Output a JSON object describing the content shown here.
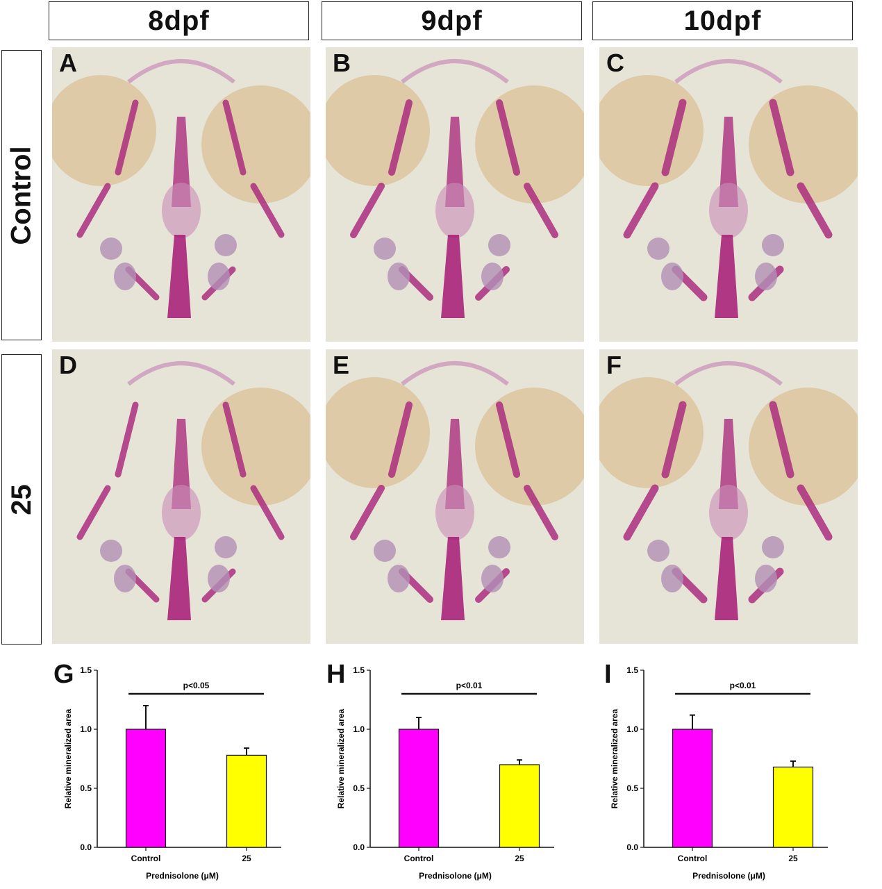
{
  "columns": [
    "8dpf",
    "9dpf",
    "10dpf"
  ],
  "rows": [
    "Control",
    "25"
  ],
  "panels": [
    {
      "letter": "A"
    },
    {
      "letter": "B"
    },
    {
      "letter": "C"
    },
    {
      "letter": "D"
    },
    {
      "letter": "E"
    },
    {
      "letter": "F"
    }
  ],
  "colors": {
    "control_bar": "#ff00ff",
    "treated_bar": "#ffff00",
    "stain_bone": "#a8237a",
    "stain_light": "#c98db8",
    "yolk": "#d9b583",
    "background_photo": "#e6e4d6"
  },
  "chart_data": [
    {
      "letter": "G",
      "type": "bar",
      "categories": [
        "Control",
        "25"
      ],
      "values": [
        1.0,
        0.78
      ],
      "errors": [
        0.2,
        0.06
      ],
      "ylabel": "Relative mineralized area",
      "xlabel": "Prednisolone (μM)",
      "ylim": [
        0.0,
        1.5
      ],
      "yticks": [
        "0.0",
        "0.5",
        "1.0",
        "1.5"
      ],
      "significance": "p<0.05"
    },
    {
      "letter": "H",
      "type": "bar",
      "categories": [
        "Control",
        "25"
      ],
      "values": [
        1.0,
        0.7
      ],
      "errors": [
        0.1,
        0.04
      ],
      "ylabel": "Relative mineralized area",
      "xlabel": "Prednisolone (μM)",
      "ylim": [
        0.0,
        1.5
      ],
      "yticks": [
        "0.0",
        "0.5",
        "1.0",
        "1.5"
      ],
      "significance": "p<0.01"
    },
    {
      "letter": "I",
      "type": "bar",
      "categories": [
        "Control",
        "25"
      ],
      "values": [
        1.0,
        0.68
      ],
      "errors": [
        0.12,
        0.05
      ],
      "ylabel": "Relative mineralized area",
      "xlabel": "Prednisolone (μM)",
      "ylim": [
        0.0,
        1.5
      ],
      "yticks": [
        "0.0",
        "0.5",
        "1.0",
        "1.5"
      ],
      "significance": "p<0.01"
    }
  ]
}
